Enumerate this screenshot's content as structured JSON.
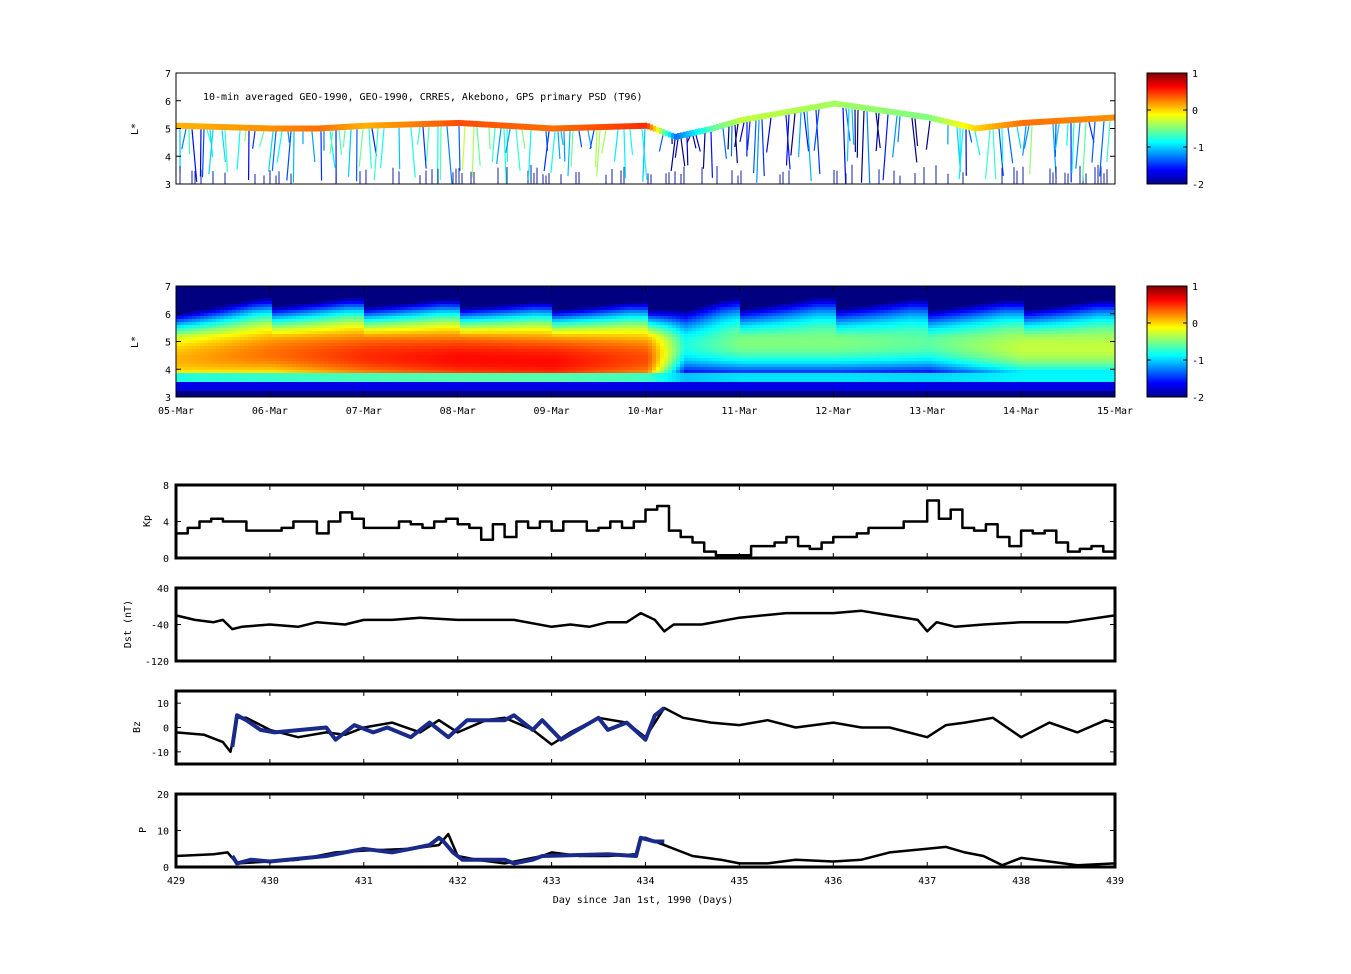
{
  "chart_data": [
    {
      "type": "scatter",
      "panel": "psd_observed",
      "title": "10-min averaged GEO-1990, GEO-1990, CRRES, Akebono, GPS  primary PSD (T96)",
      "ylabel": "L*",
      "ylim": [
        3,
        7
      ],
      "yticks": [
        "3",
        "4",
        "5",
        "6",
        "7"
      ],
      "colorbar": {
        "range": [
          -2,
          1
        ],
        "ticks": [
          "-2",
          "-1",
          "0",
          "1"
        ],
        "colormap": "jet"
      },
      "x_range_days": [
        429,
        439
      ],
      "track_day": [
        429,
        430,
        430.5,
        431,
        432,
        433,
        434,
        434.3,
        434.7,
        435,
        436,
        437,
        437.5,
        438,
        439
      ],
      "track_L": [
        5.1,
        5.0,
        5.0,
        5.1,
        5.2,
        5.0,
        5.1,
        4.7,
        5.0,
        5.3,
        5.9,
        5.4,
        5.0,
        5.2,
        5.4
      ],
      "track_psd": [
        0.1,
        0.2,
        0.3,
        0.1,
        0.4,
        0.3,
        0.5,
        -1.3,
        -0.6,
        -0.3,
        -0.4,
        -0.5,
        0.0,
        0.3,
        0.2
      ]
    },
    {
      "type": "heatmap",
      "panel": "psd_reanalysis",
      "ylabel": "L*",
      "ylim": [
        3,
        7
      ],
      "yticks": [
        "3",
        "4",
        "5",
        "6",
        "7"
      ],
      "xticks": [
        "05-Mar",
        "06-Mar",
        "07-Mar",
        "08-Mar",
        "09-Mar",
        "10-Mar",
        "11-Mar",
        "12-Mar",
        "13-Mar",
        "14-Mar",
        "15-Mar"
      ],
      "colorbar": {
        "range": [
          -2,
          1
        ],
        "ticks": [
          "-2",
          "-1",
          "0",
          "1"
        ],
        "colormap": "jet"
      },
      "day_nodes": [
        429,
        430,
        431,
        432,
        433,
        434,
        434.4,
        435,
        436,
        437,
        438,
        439
      ],
      "peak_psd": [
        0.1,
        0.3,
        0.5,
        0.6,
        0.6,
        0.4,
        -0.8,
        -0.5,
        -0.5,
        -0.6,
        -0.3,
        -0.3
      ],
      "peak_L": [
        4.4,
        4.6,
        4.5,
        4.4,
        4.3,
        4.4,
        4.9,
        5.0,
        5.0,
        5.0,
        4.8,
        4.8
      ]
    },
    {
      "type": "line",
      "panel": "kp",
      "ylabel": "Kp",
      "ylim": [
        0,
        8
      ],
      "yticks": [
        "0",
        "4",
        "8"
      ],
      "series": [
        {
          "x": [
            429,
            429.125,
            429.25,
            429.375,
            429.5,
            429.625,
            429.75,
            429.875,
            430,
            430.125,
            430.25,
            430.375,
            430.5,
            430.625,
            430.75,
            430.875,
            431,
            431.125,
            431.25,
            431.375,
            431.5,
            431.625,
            431.75,
            431.875,
            432,
            432.125,
            432.25,
            432.375,
            432.5,
            432.625,
            432.75,
            432.875,
            433,
            433.125,
            433.25,
            433.375,
            433.5,
            433.625,
            433.75,
            433.875,
            434,
            434.125,
            434.25,
            434.375,
            434.5,
            434.625,
            434.75,
            434.875,
            435,
            435.125,
            435.25,
            435.375,
            435.5,
            435.625,
            435.75,
            435.875,
            436,
            436.125,
            436.25,
            436.375,
            436.5,
            436.625,
            436.75,
            436.875,
            437,
            437.125,
            437.25,
            437.375,
            437.5,
            437.625,
            437.75,
            437.875,
            438,
            438.125,
            438.25,
            438.375,
            438.5,
            438.625,
            438.75,
            438.875,
            439
          ],
          "y": [
            2.7,
            3.3,
            4.0,
            4.3,
            4.0,
            4.0,
            3.0,
            3.0,
            3.0,
            3.3,
            4.0,
            4.0,
            2.7,
            4.0,
            5.0,
            4.3,
            3.3,
            3.3,
            3.3,
            4.0,
            3.7,
            3.3,
            4.0,
            4.3,
            3.7,
            3.3,
            2.0,
            3.7,
            2.3,
            4.0,
            3.3,
            4.0,
            3.0,
            4.0,
            4.0,
            3.0,
            3.3,
            4.0,
            3.3,
            4.0,
            5.3,
            5.7,
            3.0,
            2.3,
            1.7,
            0.7,
            0.3,
            0.3,
            0.3,
            1.3,
            1.3,
            1.7,
            2.3,
            1.3,
            1.0,
            1.7,
            2.3,
            2.3,
            2.7,
            3.3,
            3.3,
            3.3,
            4.0,
            4.0,
            6.3,
            4.3,
            5.3,
            3.3,
            3.0,
            3.7,
            2.3,
            1.3,
            3.0,
            2.7,
            3.0,
            1.7,
            0.7,
            1.0,
            1.3,
            0.7,
            1.0
          ]
        }
      ]
    },
    {
      "type": "line",
      "panel": "dst",
      "ylabel": "Dst (nT)",
      "ylim": [
        -120,
        40
      ],
      "yticks": [
        "-120",
        "-40",
        "40"
      ],
      "series": [
        {
          "x": [
            429,
            429.2,
            429.4,
            429.5,
            429.6,
            429.7,
            430,
            430.3,
            430.5,
            430.8,
            431,
            431.3,
            431.6,
            432,
            432.3,
            432.6,
            433,
            433.2,
            433.4,
            433.6,
            433.8,
            433.95,
            434.1,
            434.2,
            434.3,
            434.6,
            435,
            435.5,
            436,
            436.3,
            436.6,
            436.9,
            437,
            437.1,
            437.3,
            437.6,
            438,
            438.5,
            439
          ],
          "y": [
            -20,
            -30,
            -35,
            -30,
            -50,
            -45,
            -40,
            -45,
            -35,
            -40,
            -30,
            -30,
            -25,
            -30,
            -30,
            -30,
            -45,
            -40,
            -45,
            -35,
            -35,
            -15,
            -30,
            -55,
            -40,
            -40,
            -25,
            -15,
            -15,
            -10,
            -20,
            -30,
            -55,
            -35,
            -45,
            -40,
            -35,
            -35,
            -20
          ]
        }
      ]
    },
    {
      "type": "line",
      "panel": "bz",
      "ylabel": "Bz",
      "ylim": [
        -15,
        15
      ],
      "yticks": [
        "-10",
        "0",
        "10"
      ],
      "series": [
        {
          "x": [
            429,
            429.3,
            429.5,
            429.58,
            429.65,
            429.75,
            430,
            430.3,
            430.6,
            430.8,
            431,
            431.3,
            431.6,
            431.8,
            432,
            432.3,
            432.5,
            432.8,
            433,
            433.2,
            433.5,
            433.8,
            434,
            434.2,
            434.4,
            434.7,
            435,
            435.3,
            435.6,
            436,
            436.3,
            436.6,
            437,
            437.2,
            437.4,
            437.7,
            438,
            438.3,
            438.6,
            438.9,
            439
          ],
          "y": [
            -2,
            -3,
            -6,
            -10,
            4,
            4,
            -1,
            -4,
            -2,
            -3,
            0,
            2,
            -2,
            3,
            -2,
            3,
            4,
            -1,
            -7,
            -2,
            4,
            2,
            -4,
            8,
            4,
            2,
            1,
            3,
            0,
            2,
            0,
            0,
            -4,
            1,
            2,
            4,
            -4,
            2,
            -2,
            3,
            2
          ]
        },
        {
          "x": [
            429.6,
            429.65,
            429.75,
            429.9,
            430.05,
            430.6,
            430.7,
            430.9,
            431.1,
            431.25,
            431.5,
            431.7,
            431.9,
            432.1,
            432.5,
            432.6,
            432.8,
            432.9,
            433.1,
            433.5,
            433.6,
            433.8,
            434,
            434.1,
            434.2
          ],
          "y": [
            -8,
            5,
            3,
            -1,
            -2,
            0,
            -5,
            1,
            -2,
            0,
            -4,
            2,
            -4,
            3,
            3,
            5,
            -1,
            3,
            -5,
            4,
            -1,
            2,
            -5,
            5,
            8
          ]
        }
      ]
    },
    {
      "type": "line",
      "panel": "p",
      "ylabel": "P",
      "ylim": [
        0,
        20
      ],
      "yticks": [
        "0",
        "10",
        "20"
      ],
      "xticks": [
        "429",
        "430",
        "431",
        "432",
        "433",
        "434",
        "435",
        "436",
        "437",
        "438",
        "439"
      ],
      "xlabel": "Day since Jan 1st, 1990 (Days)",
      "series": [
        {
          "x": [
            429,
            429.4,
            429.55,
            429.6,
            429.65,
            430,
            430.3,
            430.6,
            430.7,
            431,
            431.5,
            431.8,
            431.9,
            432,
            432.2,
            432.5,
            432.7,
            432.9,
            433,
            433.3,
            433.6,
            433.9,
            433.95,
            434,
            434.2,
            434.5,
            434.8,
            435,
            435.3,
            435.6,
            436,
            436.3,
            436.6,
            437,
            437.2,
            437.4,
            437.6,
            437.8,
            438,
            438.3,
            438.6,
            439
          ],
          "y": [
            3,
            3.5,
            4,
            2.5,
            1,
            1.5,
            2,
            3.5,
            4,
            4.5,
            5,
            6,
            9,
            3,
            2,
            1,
            2,
            3,
            4,
            3,
            3,
            3.5,
            8,
            8,
            6,
            3,
            2,
            1,
            1,
            2,
            1.5,
            2,
            4,
            5,
            5.5,
            4,
            3,
            0.5,
            2.5,
            1.5,
            0.5,
            1
          ]
        },
        {
          "x": [
            429.6,
            429.65,
            429.8,
            430,
            430.6,
            430.8,
            431,
            431.3,
            431.5,
            431.7,
            431.8,
            431.85,
            431.95,
            432.05,
            432.5,
            432.6,
            432.8,
            432.9,
            433.6,
            433.9,
            433.95,
            434.1,
            434.2
          ],
          "y": [
            3,
            1,
            2,
            1.5,
            3,
            4,
            5,
            4,
            5,
            6,
            8,
            7,
            4,
            2,
            2,
            1,
            2,
            3,
            3.5,
            3,
            8,
            7,
            7
          ]
        }
      ]
    }
  ]
}
